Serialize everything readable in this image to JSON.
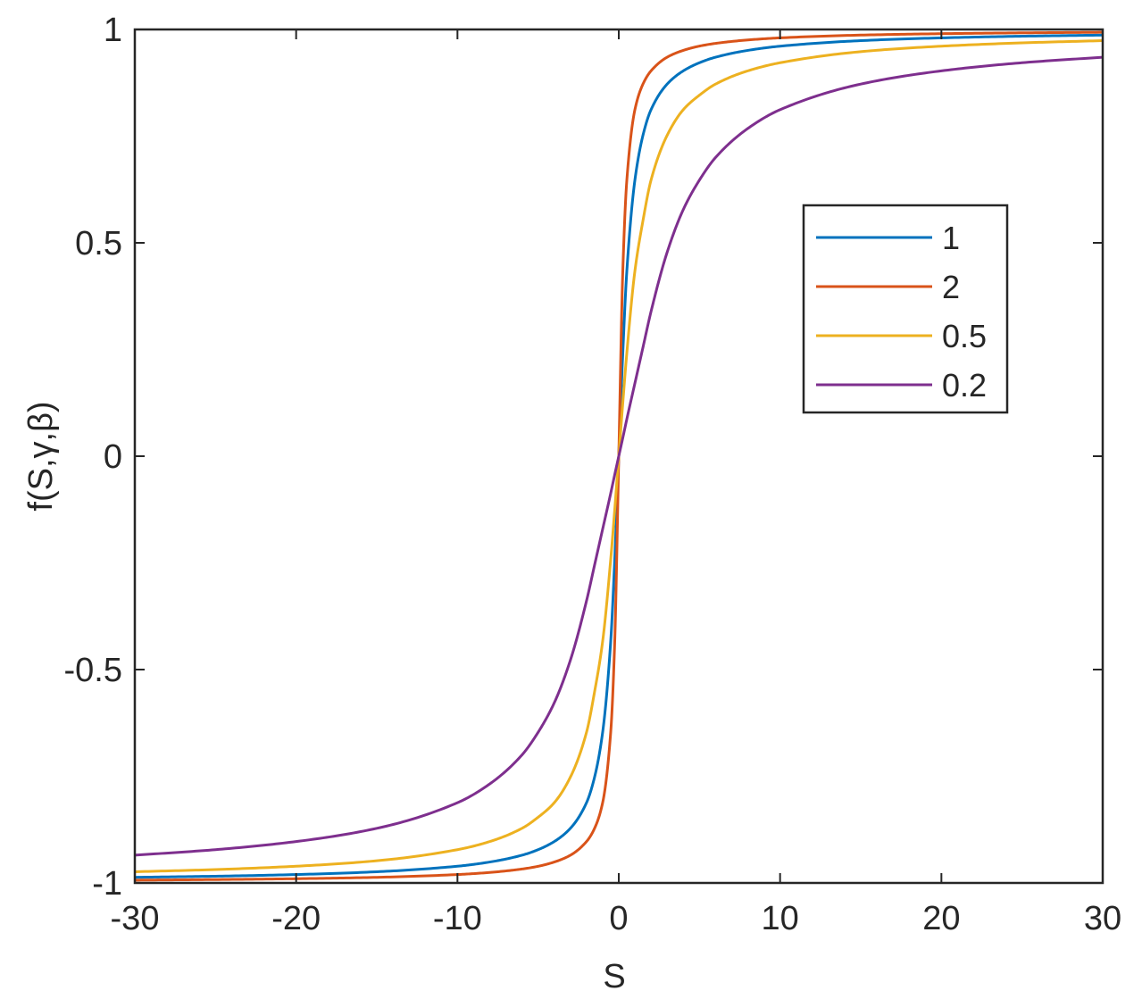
{
  "chart_data": {
    "type": "line",
    "title": "",
    "xlabel": "S",
    "ylabel": "f(S,γ,β)",
    "xlim": [
      -30,
      30
    ],
    "ylim": [
      -1,
      1
    ],
    "xticks": [
      -30,
      -20,
      -10,
      0,
      10,
      20,
      30
    ],
    "xtick_labels": [
      "-30",
      "-20",
      "-10",
      "0",
      "10",
      "20",
      "30"
    ],
    "yticks": [
      -1,
      -0.5,
      0,
      0.5,
      1
    ],
    "ytick_labels": [
      "-1",
      "-0.5",
      "0",
      "0.5",
      "1"
    ],
    "grid": false,
    "legend_position": "right, upper-middle",
    "series": [
      {
        "name": "1",
        "color": "#0072BD",
        "x": [
          -30,
          -25,
          -20,
          -15,
          -10,
          -8,
          -6,
          -5,
          -4,
          -3,
          -2,
          -1.5,
          -1,
          -0.5,
          -0.25,
          0,
          0.25,
          0.5,
          1,
          1.5,
          2,
          3,
          4,
          5,
          6,
          8,
          10,
          15,
          20,
          25,
          30
        ],
        "y": [
          -0.9868,
          -0.9842,
          -0.9803,
          -0.9738,
          -0.9608,
          -0.951,
          -0.935,
          -0.922,
          -0.903,
          -0.872,
          -0.812,
          -0.752,
          -0.647,
          -0.434,
          -0.242,
          0,
          0.242,
          0.434,
          0.647,
          0.752,
          0.812,
          0.872,
          0.903,
          0.922,
          0.935,
          0.951,
          0.9608,
          0.9738,
          0.9803,
          0.9842,
          0.9868
        ]
      },
      {
        "name": "2",
        "color": "#D95319",
        "x": [
          -30,
          -25,
          -20,
          -15,
          -10,
          -8,
          -6,
          -5,
          -4,
          -3,
          -2,
          -1.5,
          -1,
          -0.5,
          -0.25,
          0,
          0.25,
          0.5,
          1,
          1.5,
          2,
          3,
          4,
          5,
          6,
          8,
          10,
          15,
          20,
          25,
          30
        ],
        "y": [
          -0.9934,
          -0.9921,
          -0.9901,
          -0.9868,
          -0.9803,
          -0.9754,
          -0.9674,
          -0.961,
          -0.951,
          -0.935,
          -0.903,
          -0.872,
          -0.812,
          -0.647,
          -0.434,
          0,
          0.434,
          0.647,
          0.812,
          0.872,
          0.903,
          0.935,
          0.951,
          0.961,
          0.9674,
          0.9754,
          0.9803,
          0.9868,
          0.9901,
          0.9921,
          0.9934
        ]
      },
      {
        "name": "0.5",
        "color": "#EDB120",
        "x": [
          -30,
          -25,
          -20,
          -15,
          -10,
          -8,
          -6,
          -5,
          -4,
          -3,
          -2,
          -1.5,
          -1,
          -0.5,
          -0.25,
          0,
          0.25,
          0.5,
          1,
          1.5,
          2,
          3,
          4,
          5,
          6,
          8,
          10,
          15,
          20,
          25,
          30
        ],
        "y": [
          -0.9738,
          -0.9686,
          -0.9608,
          -0.948,
          -0.922,
          -0.903,
          -0.872,
          -0.846,
          -0.812,
          -0.752,
          -0.647,
          -0.552,
          -0.434,
          -0.242,
          -0.125,
          0,
          0.125,
          0.242,
          0.434,
          0.552,
          0.647,
          0.752,
          0.812,
          0.846,
          0.872,
          0.903,
          0.922,
          0.948,
          0.9608,
          0.9686,
          0.9738
        ]
      },
      {
        "name": "0.2",
        "color": "#7E2F8E",
        "x": [
          -30,
          -25,
          -20,
          -15,
          -10,
          -8,
          -6,
          -5,
          -4,
          -3,
          -2,
          -1.5,
          -1,
          -0.5,
          -0.25,
          0,
          0.25,
          0.5,
          1,
          1.5,
          2,
          3,
          4,
          5,
          6,
          8,
          10,
          15,
          20,
          25,
          30
        ],
        "y": [
          -0.935,
          -0.922,
          -0.903,
          -0.872,
          -0.812,
          -0.768,
          -0.7,
          -0.647,
          -0.578,
          -0.478,
          -0.339,
          -0.255,
          -0.171,
          -0.087,
          -0.043,
          0,
          0.043,
          0.087,
          0.171,
          0.255,
          0.339,
          0.478,
          0.578,
          0.647,
          0.7,
          0.768,
          0.812,
          0.872,
          0.903,
          0.922,
          0.935
        ]
      }
    ]
  }
}
